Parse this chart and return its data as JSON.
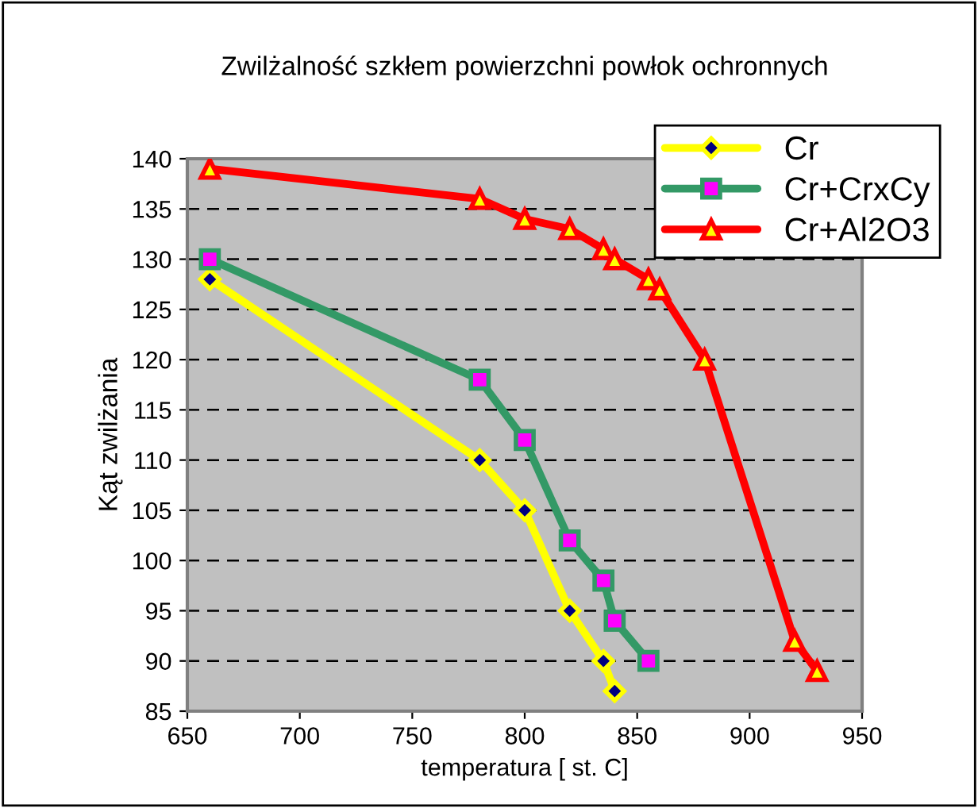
{
  "chart_data": {
    "type": "line",
    "title": "Zwilżalność szkłem powierzchni powłok ochronnych",
    "xlabel": "temperatura [ st. C]",
    "ylabel": "Kąt zwilżania",
    "series": [
      {
        "name": "Cr",
        "color": "#ffff00",
        "marker": "diamond",
        "x": [
          660,
          780,
          800,
          820,
          835,
          840
        ],
        "values": [
          128,
          110,
          105,
          95,
          90,
          87
        ]
      },
      {
        "name": "Cr+CrxCy",
        "color": "#339966",
        "marker": "square",
        "x": [
          660,
          780,
          800,
          820,
          835,
          840,
          855
        ],
        "values": [
          130,
          118,
          112,
          102,
          98,
          94,
          90
        ]
      },
      {
        "name": "Cr+Al2O3",
        "color": "#ff0000",
        "marker": "triangle",
        "x": [
          660,
          780,
          800,
          820,
          835,
          840,
          855,
          860,
          880,
          920,
          930
        ],
        "values": [
          139,
          136,
          134,
          133,
          131,
          130,
          128,
          127,
          120,
          92,
          89
        ]
      }
    ],
    "xlim": [
      650,
      950
    ],
    "xticks": [
      650,
      700,
      750,
      800,
      850,
      900,
      950
    ],
    "ylim": [
      85,
      140
    ],
    "yticks": [
      85,
      90,
      95,
      100,
      105,
      110,
      115,
      120,
      125,
      130,
      135,
      140
    ],
    "grid": "y",
    "legend": "top right",
    "line_style": "solid"
  }
}
